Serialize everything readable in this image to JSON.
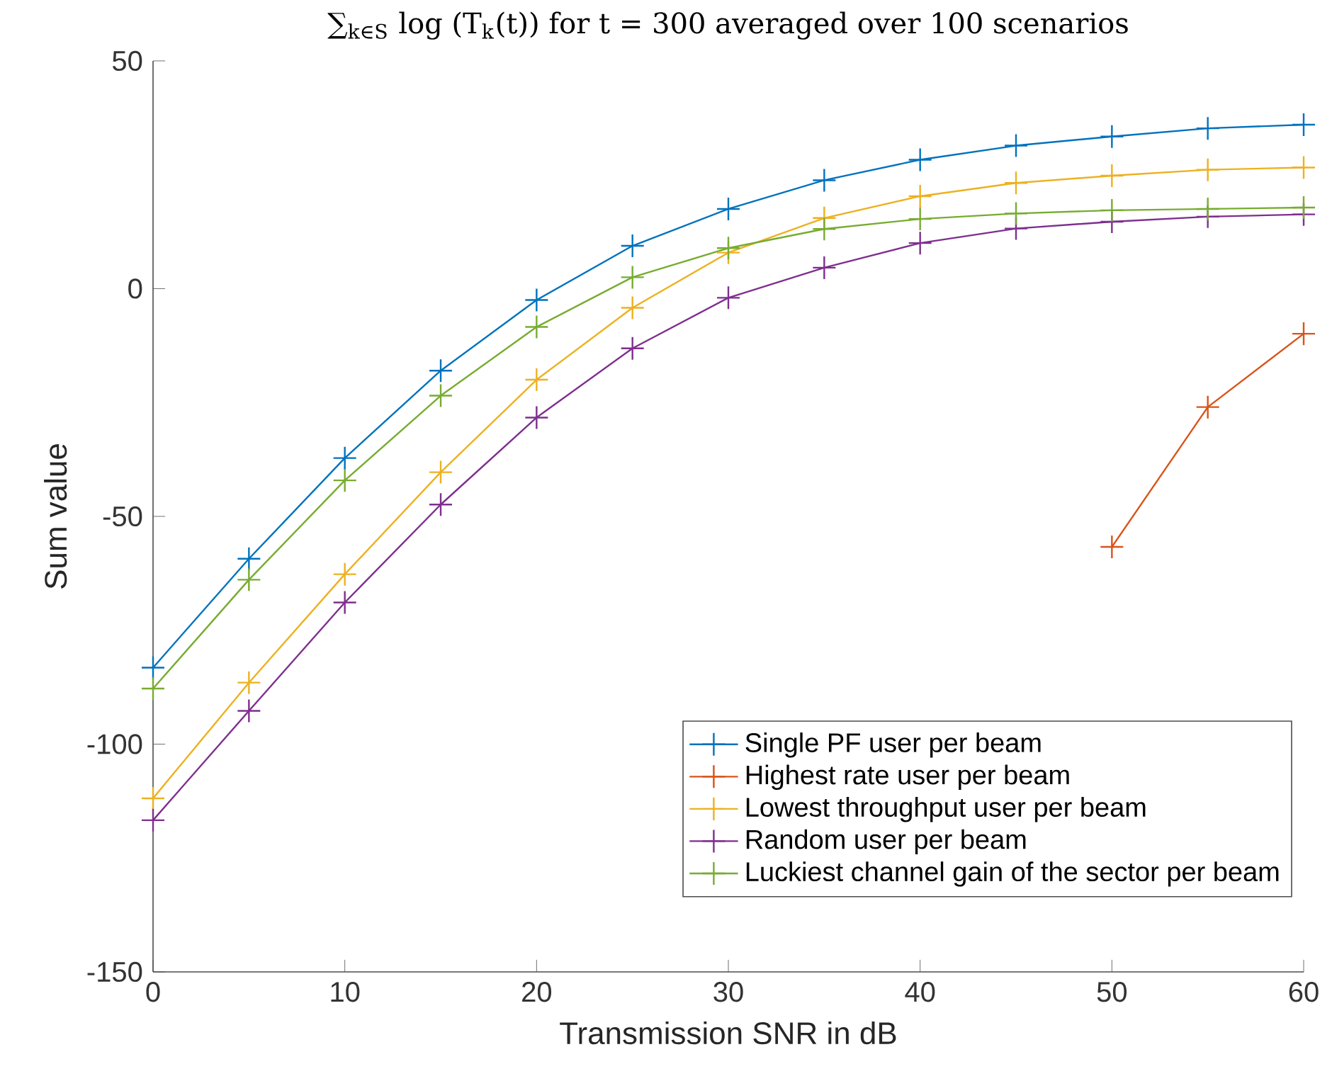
{
  "chart_data": {
    "type": "line",
    "title": "∑$_{k∈S}$ log (T$_{k}$(t)) for t = 300 averaged over 100 scenarios",
    "xlabel": "Transmission SNR in dB",
    "ylabel": "Sum value",
    "x": [
      0,
      5,
      10,
      15,
      20,
      25,
      30,
      35,
      40,
      45,
      50,
      55,
      60
    ],
    "series": [
      {
        "name": "Single PF user per beam",
        "color": "#0072bd",
        "values": [
          -83.2,
          -59.3,
          -37.2,
          -18.0,
          -2.5,
          9.4,
          17.5,
          23.8,
          28.3,
          31.4,
          33.4,
          35.2,
          36.0
        ]
      },
      {
        "name": "Highest rate user per beam",
        "color": "#d95319",
        "values": [
          null,
          null,
          null,
          null,
          null,
          null,
          null,
          null,
          null,
          null,
          -56.7,
          -26.0,
          -9.9
        ]
      },
      {
        "name": "Lowest throughput user per beam",
        "color": "#edb120",
        "values": [
          -111.9,
          -86.5,
          -62.7,
          -40.3,
          -20.0,
          -4.2,
          7.9,
          15.5,
          20.3,
          23.2,
          24.8,
          26.1,
          26.6
        ]
      },
      {
        "name": "Random user per beam",
        "color": "#7e2f8e",
        "values": [
          -116.7,
          -92.7,
          -68.9,
          -47.4,
          -28.3,
          -13.1,
          -2.0,
          4.6,
          10.0,
          13.2,
          14.7,
          15.8,
          16.3
        ]
      },
      {
        "name": "Luckiest channel gain of the sector per beam",
        "color": "#77ac30",
        "values": [
          -87.8,
          -63.9,
          -42.1,
          -23.5,
          -8.4,
          2.5,
          8.9,
          13.1,
          15.3,
          16.5,
          17.2,
          17.5,
          17.8
        ]
      }
    ],
    "xlim": [
      0,
      60
    ],
    "xticks": [
      0,
      10,
      20,
      30,
      40,
      50,
      60
    ],
    "ylim": [
      -150,
      50
    ],
    "yticks": [
      -150,
      -100,
      -50,
      0,
      50
    ],
    "grid": false,
    "legend": "bottom right",
    "marker": "cross",
    "line_style": "solid"
  }
}
